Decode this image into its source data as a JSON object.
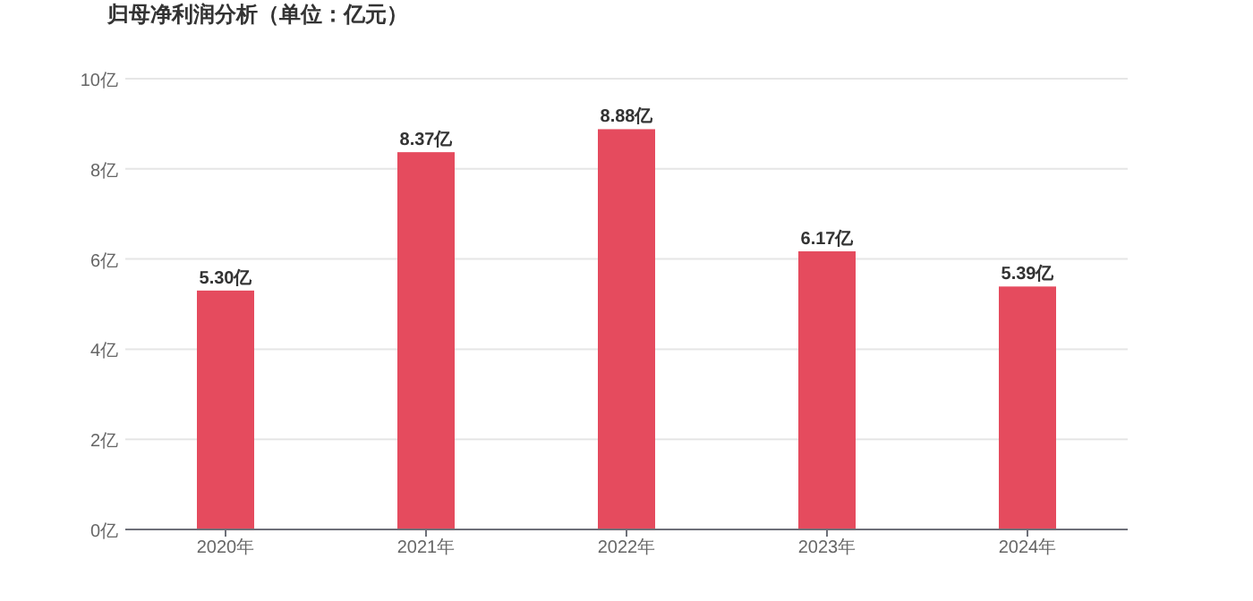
{
  "chart_data": {
    "type": "bar",
    "title": "归母净利润分析（单位：亿元）",
    "categories": [
      "2020年",
      "2021年",
      "2022年",
      "2023年",
      "2024年"
    ],
    "values": [
      5.3,
      8.37,
      8.88,
      6.17,
      5.39
    ],
    "value_labels": [
      "5.30亿",
      "8.37亿",
      "8.88亿",
      "6.17亿",
      "5.39亿"
    ],
    "color": "#e54b5e",
    "ylim": [
      0,
      10
    ],
    "yticks": [
      {
        "value": 0,
        "label": "0亿"
      },
      {
        "value": 2,
        "label": "2亿"
      },
      {
        "value": 4,
        "label": "4亿"
      },
      {
        "value": 6,
        "label": "6亿"
      },
      {
        "value": 8,
        "label": "8亿"
      },
      {
        "value": 10,
        "label": "10亿"
      }
    ],
    "grid": "y"
  }
}
